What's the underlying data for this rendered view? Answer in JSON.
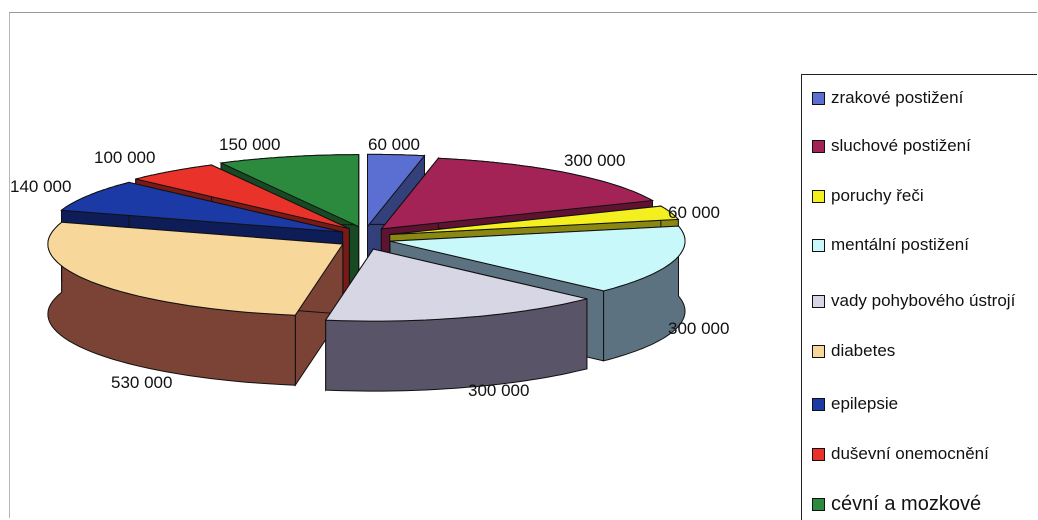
{
  "chart_data": {
    "type": "pie",
    "style": "3d-exploded",
    "legend_position": "right",
    "slices": [
      {
        "label": "zrakové postižení",
        "value": 60000,
        "value_label": "60 000",
        "color": "#5b6fd2",
        "side": "#33407a"
      },
      {
        "label": "sluchové postižení",
        "value": 300000,
        "value_label": "300 000",
        "color": "#a42356",
        "side": "#5e1331"
      },
      {
        "label": "poruchy řeči",
        "value": 60000,
        "value_label": "60 000",
        "color": "#f4f020",
        "side": "#8a8712"
      },
      {
        "label": "mentální postižení",
        "value": 300000,
        "value_label": "300 000",
        "color": "#c8f8fa",
        "side": "#5d7280"
      },
      {
        "label": "vady pohybového ústrojí",
        "value": 300000,
        "value_label": "300 000",
        "color": "#d6d6e4",
        "side": "#5a5468"
      },
      {
        "label": "diabetes",
        "value": 530000,
        "value_label": "530 000",
        "color": "#f7d79a",
        "side": "#7a4336"
      },
      {
        "label": "epilepsie",
        "value": 140000,
        "value_label": "140 000",
        "color": "#1c3aa6",
        "side": "#0e1d58"
      },
      {
        "label": "duševní onemocnění",
        "value": 100000,
        "value_label": "100 000",
        "color": "#e8322a",
        "side": "#7a1a16"
      },
      {
        "label": "cévní a mozkové",
        "value": 150000,
        "value_label": "150 000",
        "color": "#2c8a3e",
        "side": "#174a22"
      }
    ]
  }
}
